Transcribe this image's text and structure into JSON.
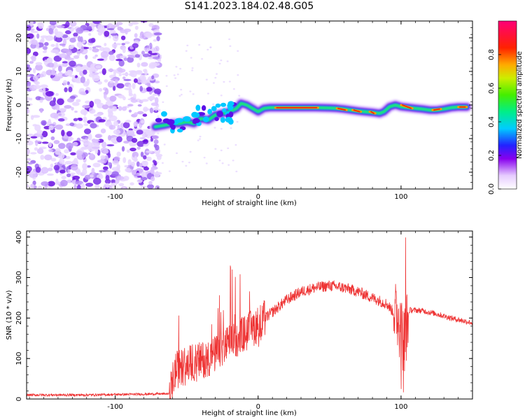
{
  "chart_data": [
    {
      "type": "heatmap",
      "title": "S141.2023.184.02.48.G05",
      "xlabel": "Height of straight line (km)",
      "ylabel": "Frequency (Hz)",
      "xlim": [
        -162,
        150
      ],
      "ylim": [
        -25,
        25
      ],
      "xticks": [
        -100,
        0,
        100
      ],
      "yticks": [
        -20,
        -10,
        0,
        10,
        20
      ],
      "colorbar": {
        "label": "Normalized spectral amplitude",
        "range": [
          0,
          1
        ],
        "ticks": [
          "0.0",
          "0.2",
          "0.4",
          "0.6",
          "0.8"
        ]
      },
      "ridge": [
        {
          "x": -72,
          "f": -6.5
        },
        {
          "x": -65,
          "f": -6
        },
        {
          "x": -60,
          "f": -5.5
        },
        {
          "x": -55,
          "f": -5.5
        },
        {
          "x": -50,
          "f": -5
        },
        {
          "x": -45,
          "f": -5.5
        },
        {
          "x": -40,
          "f": -4
        },
        {
          "x": -35,
          "f": -4.5
        },
        {
          "x": -30,
          "f": -3
        },
        {
          "x": -25,
          "f": -2.5
        },
        {
          "x": -20,
          "f": -2
        },
        {
          "x": -15,
          "f": -1
        },
        {
          "x": -12,
          "f": 0.5
        },
        {
          "x": -8,
          "f": 0
        },
        {
          "x": -4,
          "f": -1
        },
        {
          "x": 0,
          "f": -2
        },
        {
          "x": 4,
          "f": -1
        },
        {
          "x": 8,
          "f": -0.8
        },
        {
          "x": 20,
          "f": -0.8
        },
        {
          "x": 30,
          "f": -0.8
        },
        {
          "x": 40,
          "f": -0.8
        },
        {
          "x": 50,
          "f": -0.9
        },
        {
          "x": 55,
          "f": -1
        },
        {
          "x": 60,
          "f": -1.2
        },
        {
          "x": 65,
          "f": -1.5
        },
        {
          "x": 70,
          "f": -1.8
        },
        {
          "x": 75,
          "f": -2
        },
        {
          "x": 80,
          "f": -2.2
        },
        {
          "x": 85,
          "f": -2.5
        },
        {
          "x": 88,
          "f": -2
        },
        {
          "x": 92,
          "f": -0.5
        },
        {
          "x": 96,
          "f": 0
        },
        {
          "x": 100,
          "f": -0.5
        },
        {
          "x": 110,
          "f": -1
        },
        {
          "x": 115,
          "f": -1.2
        },
        {
          "x": 120,
          "f": -1.5
        },
        {
          "x": 125,
          "f": -1.5
        },
        {
          "x": 130,
          "f": -1.2
        },
        {
          "x": 135,
          "f": -0.8
        },
        {
          "x": 140,
          "f": -0.6
        },
        {
          "x": 146,
          "f": -0.6
        }
      ]
    },
    {
      "type": "line",
      "xlabel": "Height of straight line (km)",
      "ylabel": "SNR (10 * v/v)",
      "xlim": [
        -162,
        150
      ],
      "ylim": [
        0,
        415
      ],
      "xticks": [
        -100,
        0,
        100
      ],
      "yticks": [
        0,
        100,
        200,
        300,
        400
      ],
      "color": "#ee3333",
      "envelope": [
        {
          "x": -162,
          "y": 10
        },
        {
          "x": -140,
          "y": 10
        },
        {
          "x": -120,
          "y": 10
        },
        {
          "x": -100,
          "y": 11
        },
        {
          "x": -80,
          "y": 12
        },
        {
          "x": -62,
          "y": 13
        },
        {
          "x": -58,
          "y": 70
        },
        {
          "x": -50,
          "y": 85
        },
        {
          "x": -40,
          "y": 95
        },
        {
          "x": -30,
          "y": 110
        },
        {
          "x": -20,
          "y": 140
        },
        {
          "x": -10,
          "y": 160
        },
        {
          "x": 0,
          "y": 185
        },
        {
          "x": 10,
          "y": 215
        },
        {
          "x": 20,
          "y": 245
        },
        {
          "x": 30,
          "y": 265
        },
        {
          "x": 40,
          "y": 275
        },
        {
          "x": 50,
          "y": 280
        },
        {
          "x": 60,
          "y": 275
        },
        {
          "x": 70,
          "y": 265
        },
        {
          "x": 80,
          "y": 250
        },
        {
          "x": 90,
          "y": 235
        },
        {
          "x": 98,
          "y": 200
        },
        {
          "x": 102,
          "y": 140
        },
        {
          "x": 106,
          "y": 220
        },
        {
          "x": 115,
          "y": 218
        },
        {
          "x": 125,
          "y": 210
        },
        {
          "x": 135,
          "y": 200
        },
        {
          "x": 150,
          "y": 188
        }
      ]
    }
  ]
}
